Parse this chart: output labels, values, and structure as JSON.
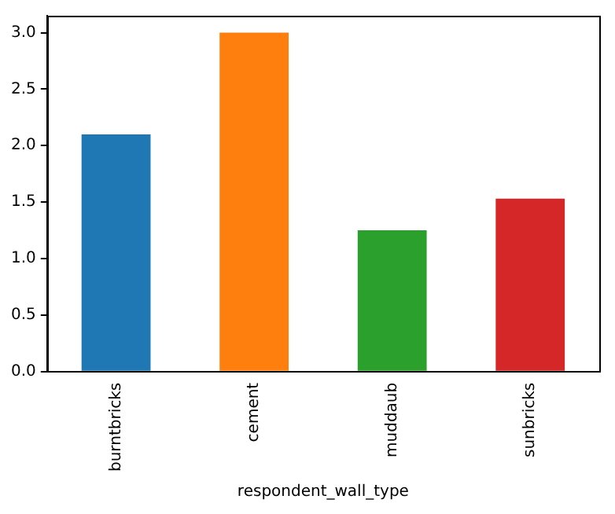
{
  "chart_data": {
    "type": "bar",
    "xlabel": "respondent_wall_type",
    "categories": [
      "burntbricks",
      "cement",
      "muddaub",
      "sunbricks"
    ],
    "values": [
      2.1,
      3.0,
      1.25,
      1.53
    ],
    "colors": [
      "#1f77b4",
      "#ff7f0e",
      "#2ca02c",
      "#d62728"
    ],
    "ylim": [
      0,
      3.15
    ],
    "yticks": [
      {
        "value": 0,
        "label": "0.0"
      },
      0.5,
      {
        "value": 1,
        "label": "1.0"
      },
      1.5,
      {
        "value": 2,
        "label": "2.0"
      },
      2.5,
      {
        "value": 3,
        "label": "3.0"
      }
    ],
    "grid": false,
    "legend": false
  }
}
